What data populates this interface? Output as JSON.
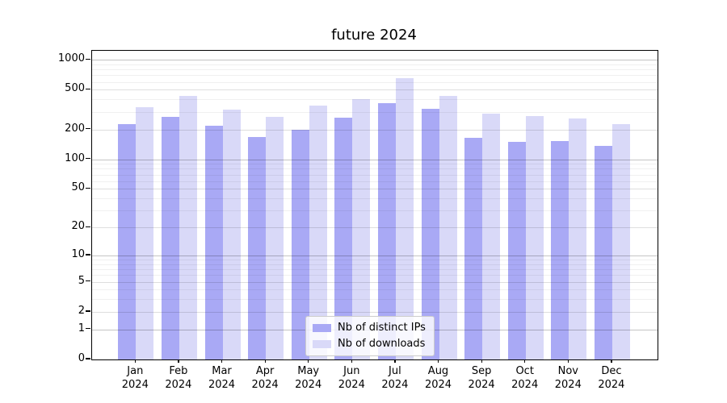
{
  "title": "future 2024",
  "chart_data": {
    "type": "bar",
    "title": "future 2024",
    "xlabel": "",
    "ylabel": "",
    "yscale": "log1p",
    "ylim": [
      0,
      1230
    ],
    "yticks": [
      0,
      1,
      2,
      5,
      10,
      20,
      50,
      100,
      200,
      500,
      1000
    ],
    "minor_gridlines": [
      3,
      4,
      6,
      7,
      8,
      9,
      30,
      40,
      60,
      70,
      80,
      90,
      300,
      400,
      600,
      700,
      800,
      900
    ],
    "grid": "on",
    "legend_position": "lower center",
    "categories": [
      "Jan",
      "Feb",
      "Mar",
      "Apr",
      "May",
      "Jun",
      "Jul",
      "Aug",
      "Sep",
      "Oct",
      "Nov",
      "Dec"
    ],
    "year": "2024",
    "series": [
      {
        "name": "Nb of distinct IPs",
        "color": "#a9a9f5",
        "values": [
          228,
          266,
          216,
          167,
          200,
          261,
          365,
          321,
          166,
          151,
          153,
          136
        ]
      },
      {
        "name": "Nb of downloads",
        "color": "#d9d9f8",
        "values": [
          333,
          435,
          315,
          266,
          345,
          400,
          655,
          432,
          290,
          273,
          258,
          224
        ]
      }
    ]
  },
  "colors": {
    "grid_decade": "rgba(0,0,0,0.23)",
    "grid_sub": "rgba(0,0,0,0.13)",
    "grid_minor": "rgba(0,0,0,0.06)",
    "spine": "#000000"
  }
}
